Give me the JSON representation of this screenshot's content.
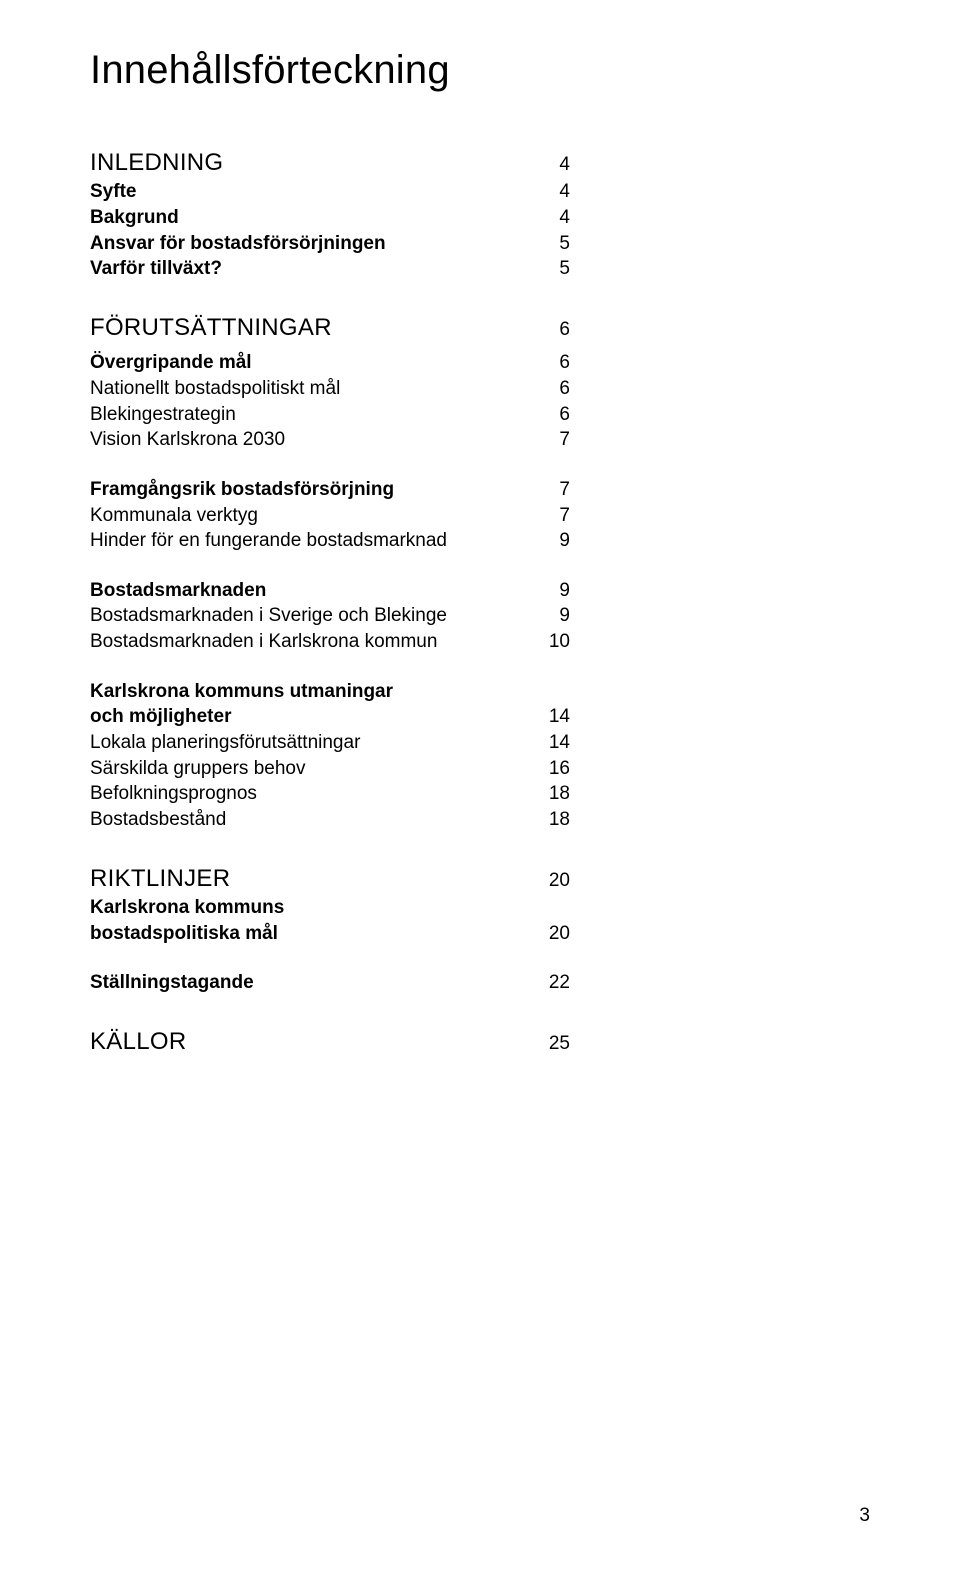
{
  "title": "Innehållsförteckning",
  "colors": {
    "text": "#000000",
    "background": "#ffffff"
  },
  "typography": {
    "title_fontsize_pt": 30,
    "section_head_fontsize_pt": 18,
    "body_fontsize_pt": 14,
    "font_family": "Arial, Helvetica, sans-serif"
  },
  "toc": {
    "inledning": {
      "head": {
        "label": "INLEDNING",
        "page": "4"
      },
      "items": [
        {
          "label": "Syfte",
          "page": "4",
          "bold": true
        },
        {
          "label": "Bakgrund",
          "page": "4",
          "bold": true
        },
        {
          "label": "Ansvar för bostadsförsörjningen",
          "page": "5",
          "bold": true
        },
        {
          "label": "Varför tillväxt?",
          "page": "5",
          "bold": true
        }
      ]
    },
    "forutsattningar": {
      "head": {
        "label": "FÖRUTSÄTTNINGAR",
        "page": "6"
      },
      "group1": {
        "lead": {
          "label": "Övergripande mål",
          "page": "6",
          "bold": true
        },
        "items": [
          {
            "label": "Nationellt bostadspolitiskt mål",
            "page": "6"
          },
          {
            "label": "Blekingestrategin",
            "page": "6"
          },
          {
            "label": "Vision Karlskrona 2030",
            "page": "7"
          }
        ]
      },
      "group2": {
        "lead": {
          "label": "Framgångsrik bostadsförsörjning",
          "page": "7",
          "bold": true
        },
        "items": [
          {
            "label": "Kommunala verktyg",
            "page": "7"
          },
          {
            "label": "Hinder för en fungerande bostadsmarknad",
            "page": "9"
          }
        ]
      },
      "group3": {
        "lead": {
          "label": "Bostadsmarknaden",
          "page": "9",
          "bold": true
        },
        "items": [
          {
            "label": "Bostadsmarknaden i Sverige och Blekinge",
            "page": "9"
          },
          {
            "label": "Bostadsmarknaden i Karlskrona kommun",
            "page": "10"
          }
        ]
      },
      "group4": {
        "lead1": {
          "label": "Karlskrona kommuns utmaningar",
          "bold": true
        },
        "lead2": {
          "label": "och möjligheter",
          "page": "14",
          "bold": true
        },
        "items": [
          {
            "label": "Lokala planeringsförutsättningar",
            "page": "14"
          },
          {
            "label": "Särskilda gruppers behov",
            "page": "16"
          },
          {
            "label": "Befolkningsprognos",
            "page": "18"
          },
          {
            "label": "Bostadsbestånd",
            "page": "18"
          }
        ]
      }
    },
    "riktlinjer": {
      "head": {
        "label": "RIKTLINJER",
        "page": "20"
      },
      "group1": {
        "lead1": {
          "label": "Karlskrona kommuns",
          "bold": true
        },
        "lead2": {
          "label": "bostadspolitiska mål",
          "page": "20",
          "bold": true
        }
      },
      "group2": {
        "lead": {
          "label": "Ställningstagande",
          "page": "22",
          "bold": true
        }
      }
    },
    "kallor": {
      "head": {
        "label": "KÄLLOR",
        "page": "25"
      }
    }
  },
  "page_number": "3"
}
